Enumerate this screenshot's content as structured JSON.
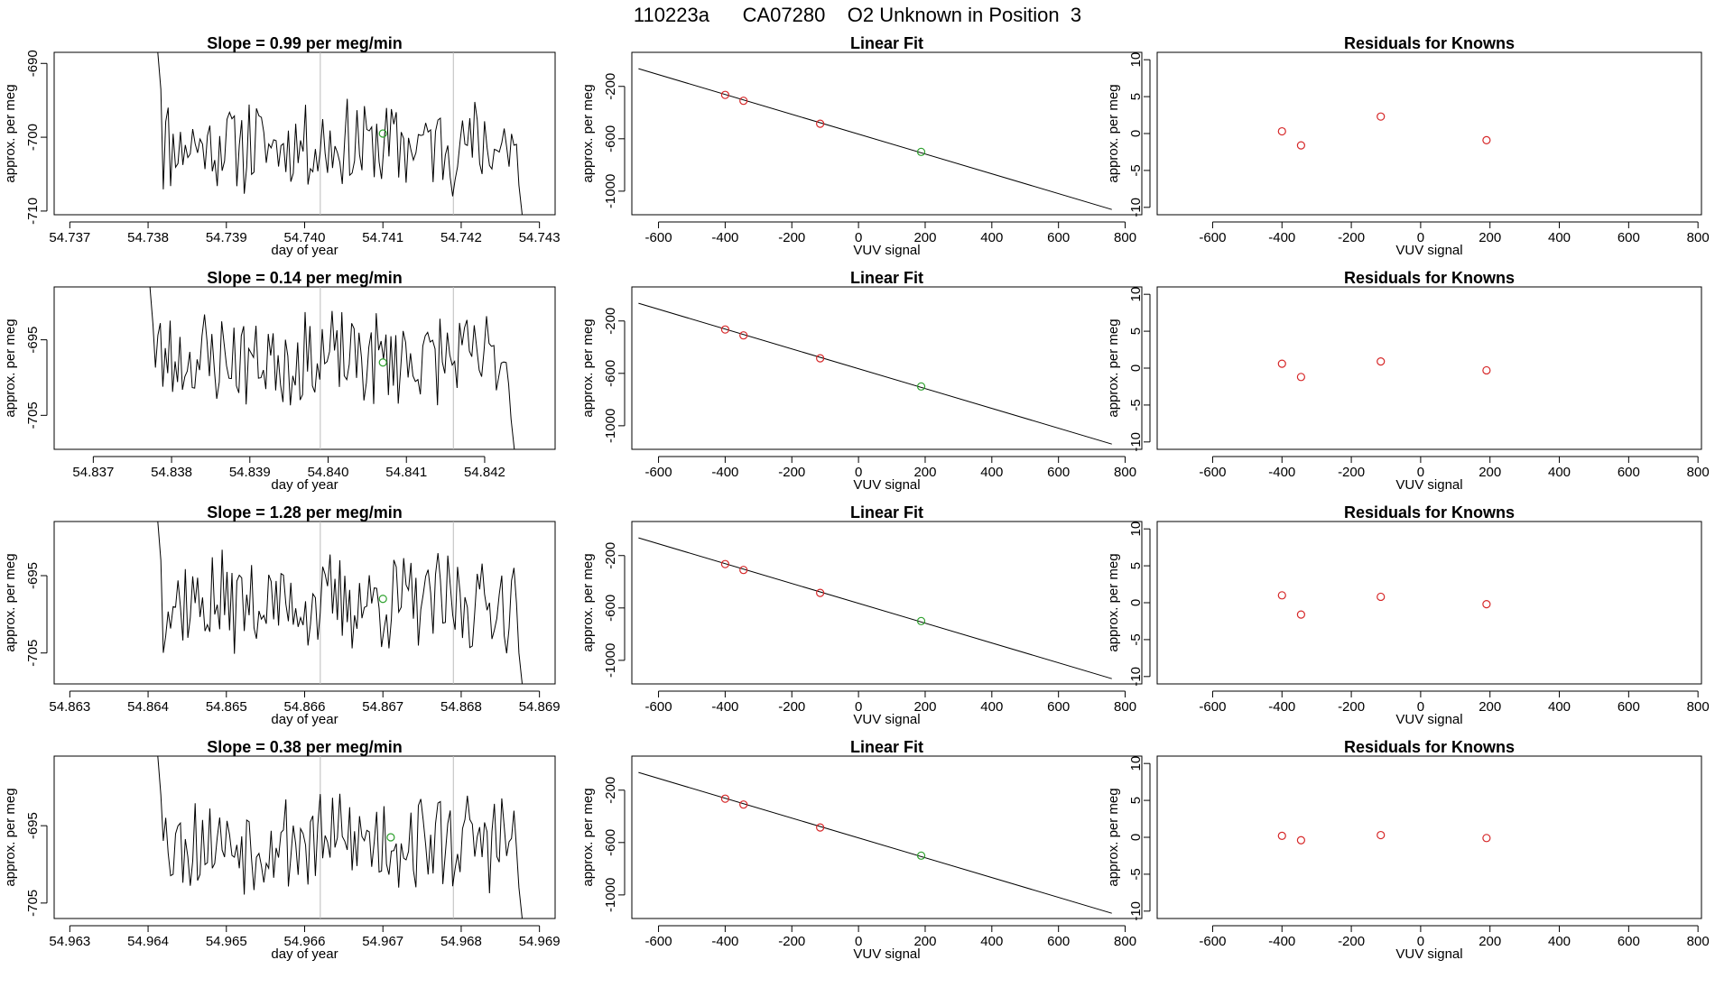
{
  "header": {
    "title": "110223a      CA07280    O2 Unknown in Position  3"
  },
  "colors": {
    "line": "#000000",
    "known": "#d62728",
    "unknown": "#2ca02c",
    "marker_line": "#bbbbbb"
  },
  "chart_data": [
    {
      "type": "line",
      "row": 0,
      "col": 0,
      "title": "Slope =  0.99  per meg/min",
      "xlabel": "day of year",
      "ylabel": "approx. per meg",
      "xlim": [
        54.7368,
        54.7432
      ],
      "ylim": [
        -710.5,
        -688.5
      ],
      "xticks": [
        54.737,
        54.738,
        54.739,
        54.74,
        54.741,
        54.742,
        54.743
      ],
      "xtick_labels": [
        "54.737",
        "54.738",
        "54.739",
        "54.740",
        "54.741",
        "54.742",
        "54.743"
      ],
      "yticks": [
        -690,
        -700,
        -710
      ],
      "ytick_labels": [
        "-690",
        "-700",
        "-710"
      ],
      "series_start": 54.7381,
      "series_end": 54.7428,
      "base": -701,
      "seed": 11,
      "vlines": [
        54.7402,
        54.7419
      ],
      "unknown_point": {
        "x": 54.741,
        "y": -699.5
      }
    },
    {
      "type": "scatter",
      "row": 0,
      "col": 1,
      "title": "Linear Fit",
      "xlabel": "VUV signal",
      "ylabel": "approx. per meg",
      "xlim": [
        -680,
        850
      ],
      "ylim": [
        -1180,
        60
      ],
      "xticks": [
        -600,
        -400,
        -200,
        0,
        200,
        400,
        600,
        800
      ],
      "xtick_labels": [
        "-600",
        "-400",
        "-200",
        "0",
        "200",
        "400",
        "600",
        "800"
      ],
      "yticks": [
        -200,
        -600,
        -1000
      ],
      "ytick_labels": [
        "-200",
        "-600",
        "-1000"
      ],
      "fit_line": [
        [
          -660,
          -65
        ],
        [
          760,
          -1140
        ]
      ],
      "knowns": [
        [
          -400,
          -265
        ],
        [
          -345,
          -310
        ],
        [
          -115,
          -485
        ]
      ],
      "unknown": [
        [
          188,
          -700
        ]
      ]
    },
    {
      "type": "scatter",
      "row": 0,
      "col": 2,
      "title": "Residuals for Knowns",
      "xlabel": "VUV signal",
      "ylabel": "approx. per meg",
      "xlim": [
        -760,
        810
      ],
      "ylim": [
        -11,
        11
      ],
      "xticks": [
        -600,
        -400,
        -200,
        0,
        200,
        400,
        600,
        800
      ],
      "xtick_labels": [
        "-600",
        "-400",
        "-200",
        "0",
        "200",
        "400",
        "600",
        "800"
      ],
      "yticks": [
        10,
        5,
        0,
        -5,
        -10
      ],
      "ytick_labels": [
        "10",
        "5",
        "0",
        "-5",
        "-10"
      ],
      "points": [
        [
          -400,
          0.3
        ],
        [
          -345,
          -1.6
        ],
        [
          -115,
          2.3
        ],
        [
          190,
          -0.9
        ]
      ]
    },
    {
      "type": "line",
      "row": 1,
      "col": 0,
      "title": "Slope =  0.14  per meg/min",
      "xlabel": "day of year",
      "ylabel": "approx. per meg",
      "xlim": [
        54.8365,
        54.8429
      ],
      "ylim": [
        -709.5,
        -688
      ],
      "xticks": [
        54.837,
        54.838,
        54.839,
        54.84,
        54.841,
        54.842
      ],
      "xtick_labels": [
        "54.837",
        "54.838",
        "54.839",
        "54.840",
        "54.841",
        "54.842"
      ],
      "yticks": [
        -695,
        -705
      ],
      "ytick_labels": [
        "-695",
        "-705"
      ],
      "series_start": 54.8377,
      "series_end": 54.8424,
      "base": -697.5,
      "seed": 23,
      "vlines": [
        54.8399,
        54.8416
      ],
      "unknown_point": {
        "x": 54.8407,
        "y": -698.0
      }
    },
    {
      "type": "scatter",
      "row": 1,
      "col": 1,
      "title": "Linear Fit",
      "xlabel": "VUV signal",
      "ylabel": "approx. per meg",
      "xlim": [
        -680,
        850
      ],
      "ylim": [
        -1180,
        60
      ],
      "xticks": [
        -600,
        -400,
        -200,
        0,
        200,
        400,
        600,
        800
      ],
      "xtick_labels": [
        "-600",
        "-400",
        "-200",
        "0",
        "200",
        "400",
        "600",
        "800"
      ],
      "yticks": [
        -200,
        -600,
        -1000
      ],
      "ytick_labels": [
        "-200",
        "-600",
        "-1000"
      ],
      "fit_line": [
        [
          -660,
          -65
        ],
        [
          760,
          -1140
        ]
      ],
      "knowns": [
        [
          -400,
          -265
        ],
        [
          -345,
          -310
        ],
        [
          -115,
          -485
        ]
      ],
      "unknown": [
        [
          188,
          -700
        ]
      ]
    },
    {
      "type": "scatter",
      "row": 1,
      "col": 2,
      "title": "Residuals for Knowns",
      "xlabel": "VUV signal",
      "ylabel": "approx. per meg",
      "xlim": [
        -760,
        810
      ],
      "ylim": [
        -11,
        11
      ],
      "xticks": [
        -600,
        -400,
        -200,
        0,
        200,
        400,
        600,
        800
      ],
      "xtick_labels": [
        "-600",
        "-400",
        "-200",
        "0",
        "200",
        "400",
        "600",
        "800"
      ],
      "yticks": [
        10,
        5,
        0,
        -5,
        -10
      ],
      "ytick_labels": [
        "10",
        "5",
        "0",
        "-5",
        "-10"
      ],
      "points": [
        [
          -400,
          0.6
        ],
        [
          -345,
          -1.2
        ],
        [
          -115,
          0.9
        ],
        [
          190,
          -0.3
        ]
      ]
    },
    {
      "type": "line",
      "row": 2,
      "col": 0,
      "title": "Slope =  1.28  per meg/min",
      "xlabel": "day of year",
      "ylabel": "approx. per meg",
      "xlim": [
        54.8628,
        54.8692
      ],
      "ylim": [
        -709,
        -688
      ],
      "xticks": [
        54.863,
        54.864,
        54.865,
        54.866,
        54.867,
        54.868,
        54.869
      ],
      "xtick_labels": [
        "54.863",
        "54.864",
        "54.865",
        "54.866",
        "54.867",
        "54.868",
        "54.869"
      ],
      "yticks": [
        -695,
        -705
      ],
      "ytick_labels": [
        "-695",
        "-705"
      ],
      "series_start": 54.8641,
      "series_end": 54.8688,
      "base": -698.5,
      "seed": 37,
      "vlines": [
        54.8662,
        54.8679
      ],
      "unknown_point": {
        "x": 54.867,
        "y": -698.0
      }
    },
    {
      "type": "scatter",
      "row": 2,
      "col": 1,
      "title": "Linear Fit",
      "xlabel": "VUV signal",
      "ylabel": "approx. per meg",
      "xlim": [
        -680,
        850
      ],
      "ylim": [
        -1180,
        60
      ],
      "xticks": [
        -600,
        -400,
        -200,
        0,
        200,
        400,
        600,
        800
      ],
      "xtick_labels": [
        "-600",
        "-400",
        "-200",
        "0",
        "200",
        "400",
        "600",
        "800"
      ],
      "yticks": [
        -200,
        -600,
        -1000
      ],
      "ytick_labels": [
        "-200",
        "-600",
        "-1000"
      ],
      "fit_line": [
        [
          -660,
          -65
        ],
        [
          760,
          -1140
        ]
      ],
      "knowns": [
        [
          -400,
          -265
        ],
        [
          -345,
          -310
        ],
        [
          -115,
          -485
        ]
      ],
      "unknown": [
        [
          188,
          -700
        ]
      ]
    },
    {
      "type": "scatter",
      "row": 2,
      "col": 2,
      "title": "Residuals for Knowns",
      "xlabel": "VUV signal",
      "ylabel": "approx. per meg",
      "xlim": [
        -760,
        810
      ],
      "ylim": [
        -11,
        11
      ],
      "xticks": [
        -600,
        -400,
        -200,
        0,
        200,
        400,
        600,
        800
      ],
      "xtick_labels": [
        "-600",
        "-400",
        "-200",
        "0",
        "200",
        "400",
        "600",
        "800"
      ],
      "yticks": [
        10,
        5,
        0,
        -5,
        -10
      ],
      "ytick_labels": [
        "10",
        "5",
        "0",
        "-5",
        "-10"
      ],
      "points": [
        [
          -400,
          1.0
        ],
        [
          -345,
          -1.6
        ],
        [
          -115,
          0.8
        ],
        [
          190,
          -0.2
        ]
      ]
    },
    {
      "type": "line",
      "row": 3,
      "col": 0,
      "title": "Slope =  0.38  per meg/min",
      "xlabel": "day of year",
      "ylabel": "approx. per meg",
      "xlim": [
        54.9628,
        54.9692
      ],
      "ylim": [
        -707,
        -686
      ],
      "xticks": [
        54.963,
        54.964,
        54.965,
        54.966,
        54.967,
        54.968,
        54.969
      ],
      "xtick_labels": [
        "54.963",
        "54.964",
        "54.965",
        "54.966",
        "54.967",
        "54.968",
        "54.969"
      ],
      "yticks": [
        -695,
        -705
      ],
      "ytick_labels": [
        "-695",
        "-705"
      ],
      "series_start": 54.9641,
      "series_end": 54.9688,
      "base": -697.0,
      "seed": 53,
      "vlines": [
        54.9662,
        54.9679
      ],
      "unknown_point": {
        "x": 54.9671,
        "y": -696.5
      }
    },
    {
      "type": "scatter",
      "row": 3,
      "col": 1,
      "title": "Linear Fit",
      "xlabel": "VUV signal",
      "ylabel": "approx. per meg",
      "xlim": [
        -680,
        850
      ],
      "ylim": [
        -1180,
        60
      ],
      "xticks": [
        -600,
        -400,
        -200,
        0,
        200,
        400,
        600,
        800
      ],
      "xtick_labels": [
        "-600",
        "-400",
        "-200",
        "0",
        "200",
        "400",
        "600",
        "800"
      ],
      "yticks": [
        -200,
        -600,
        -1000
      ],
      "ytick_labels": [
        "-200",
        "-600",
        "-1000"
      ],
      "fit_line": [
        [
          -660,
          -65
        ],
        [
          760,
          -1140
        ]
      ],
      "knowns": [
        [
          -400,
          -265
        ],
        [
          -345,
          -310
        ],
        [
          -115,
          -485
        ]
      ],
      "unknown": [
        [
          188,
          -700
        ]
      ]
    },
    {
      "type": "scatter",
      "row": 3,
      "col": 2,
      "title": "Residuals for Knowns",
      "xlabel": "VUV signal",
      "ylabel": "approx. per meg",
      "xlim": [
        -760,
        810
      ],
      "ylim": [
        -11,
        11
      ],
      "xticks": [
        -600,
        -400,
        -200,
        0,
        200,
        400,
        600,
        800
      ],
      "xtick_labels": [
        "-600",
        "-400",
        "-200",
        "0",
        "200",
        "400",
        "600",
        "800"
      ],
      "yticks": [
        10,
        5,
        0,
        -5,
        -10
      ],
      "ytick_labels": [
        "10",
        "5",
        "0",
        "-5",
        "-10"
      ],
      "points": [
        [
          -400,
          0.2
        ],
        [
          -345,
          -0.4
        ],
        [
          -115,
          0.3
        ],
        [
          190,
          -0.1
        ]
      ]
    }
  ]
}
